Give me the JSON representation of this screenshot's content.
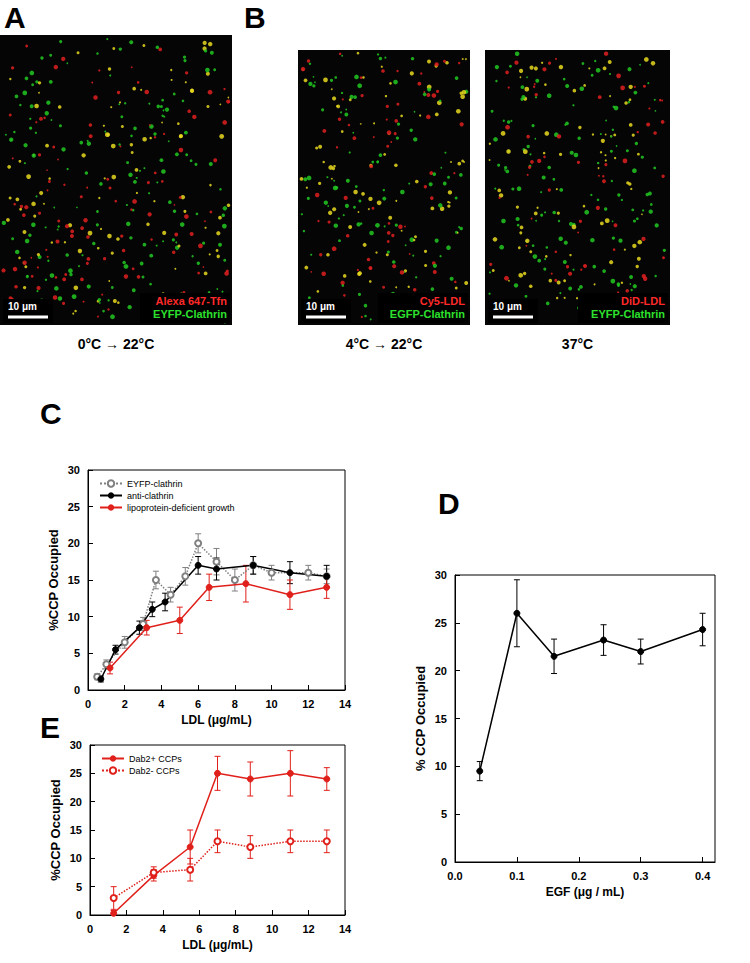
{
  "panels": [
    {
      "panel": "A",
      "images": [
        {
          "labels": [
            {
              "text": "Alexa 647-Tfn",
              "color": "#ff2a2a"
            },
            {
              "text": "EYFP-Clathrin",
              "color": "#2ee02e"
            }
          ],
          "scale_bar": "10 μm",
          "caption": "0°C → 22°C"
        }
      ]
    },
    {
      "panel": "B",
      "images": [
        {
          "labels": [
            {
              "text": "Cy5-LDL",
              "color": "#ff2a2a"
            },
            {
              "text": "EGFP-Clathrin",
              "color": "#2ee02e"
            }
          ],
          "scale_bar": "10 μm",
          "caption": "4°C → 22°C"
        },
        {
          "labels": [
            {
              "text": "DiD-LDL",
              "color": "#ff2a2a"
            },
            {
              "text": "EYFP-Clathrin",
              "color": "#2ee02e"
            }
          ],
          "scale_bar": "10 μm",
          "caption": "37°C"
        }
      ]
    }
  ],
  "chart_data": [
    {
      "panel": "C",
      "type": "line",
      "xlabel": "LDL (μg/mL)",
      "ylabel": "%CCP Occupied",
      "xlim": [
        0,
        14
      ],
      "xticks": [
        0,
        2,
        4,
        6,
        8,
        10,
        12,
        14
      ],
      "ylim": [
        0,
        30
      ],
      "yticks": [
        0,
        5,
        10,
        15,
        20,
        25,
        30
      ],
      "grid": false,
      "legend": "upper left",
      "series": [
        {
          "name": "EYFP-clathrin",
          "color": "#808080",
          "marker": "open_circle",
          "line_style": "dotted",
          "x": [
            0.5,
            1,
            2,
            3,
            3.7,
            4.5,
            5.3,
            6,
            7,
            8,
            9,
            10,
            12,
            13
          ],
          "values": [
            1.8,
            3.5,
            6.5,
            9,
            15,
            13,
            15.5,
            20,
            17.5,
            15,
            17,
            16,
            16,
            15.5
          ],
          "errors": [
            0.4,
            0.6,
            0.8,
            0.9,
            1.2,
            1.0,
            1.2,
            1.3,
            1.8,
            1.5,
            1.2,
            1.0,
            1.0,
            1.0
          ]
        },
        {
          "name": "anti-clathrin",
          "color": "#000000",
          "marker": "circle",
          "line_style": "solid",
          "x": [
            0.7,
            1.5,
            2.8,
            3.5,
            4.2,
            6,
            7,
            9,
            11,
            13
          ],
          "values": [
            1.5,
            5.5,
            8.5,
            11,
            12,
            17,
            16.5,
            17,
            16,
            15.5
          ],
          "errors": [
            0.4,
            0.6,
            0.9,
            1.0,
            1.2,
            1.2,
            1.5,
            1.2,
            1.5,
            1.5
          ]
        },
        {
          "name": "lipoprotein-deficient growth",
          "color": "#e0201b",
          "marker": "circle",
          "line_style": "solid",
          "x": [
            1.2,
            3.2,
            5,
            6.6,
            8.6,
            11,
            13
          ],
          "values": [
            3,
            8.5,
            9.5,
            14,
            14.5,
            13,
            14
          ],
          "errors": [
            0.8,
            1.0,
            1.8,
            1.8,
            2.5,
            2.0,
            1.5
          ]
        }
      ]
    },
    {
      "panel": "D",
      "type": "line",
      "xlabel": "EGF (μg / mL)",
      "ylabel": "% CCP Occupied",
      "xlim": [
        0,
        0.42
      ],
      "xticks": [
        {
          "value": 0,
          "label": "0.0"
        },
        0.1,
        0.2,
        0.3,
        0.4
      ],
      "ylim": [
        0,
        30
      ],
      "yticks": [
        0,
        5,
        10,
        15,
        20,
        25,
        30
      ],
      "grid": false,
      "series": [
        {
          "color": "#000000",
          "marker": "circle",
          "line_style": "solid",
          "x": [
            0.04,
            0.1,
            0.16,
            0.24,
            0.3,
            0.4
          ],
          "values": [
            9.5,
            26,
            21.5,
            23.2,
            22,
            24.3
          ],
          "errors": [
            1.0,
            3.5,
            1.8,
            1.6,
            1.3,
            1.7
          ]
        }
      ]
    },
    {
      "panel": "E",
      "type": "line",
      "xlabel": "LDL (μg/mL)",
      "ylabel": "%CCP Occupied",
      "xlim": [
        0,
        14
      ],
      "xticks": [
        0,
        2,
        4,
        6,
        8,
        10,
        12,
        14
      ],
      "ylim": [
        0,
        30
      ],
      "yticks": [
        0,
        5,
        10,
        15,
        20,
        25,
        30
      ],
      "grid": false,
      "legend": "upper left",
      "series": [
        {
          "name": "Dab2+ CCPs",
          "color": "#e0201b",
          "marker": "circle",
          "line_style": "solid",
          "x": [
            1.3,
            3.5,
            5.5,
            7,
            8.8,
            11,
            13
          ],
          "values": [
            0.3,
            7,
            12,
            25,
            24,
            25,
            24
          ],
          "errors": [
            0.5,
            1.0,
            3.0,
            3.0,
            3.0,
            4.0,
            2.0
          ]
        },
        {
          "name": "Dab2- CCPs",
          "color": "#e0201b",
          "marker": "open_circle",
          "line_style": "dotted",
          "x": [
            1.3,
            3.5,
            5.5,
            7,
            8.8,
            11,
            13
          ],
          "values": [
            3,
            7.5,
            8,
            13,
            12,
            13,
            13
          ],
          "errors": [
            2.0,
            1.0,
            2.0,
            2.0,
            2.0,
            2.0,
            2.0
          ]
        }
      ]
    }
  ]
}
